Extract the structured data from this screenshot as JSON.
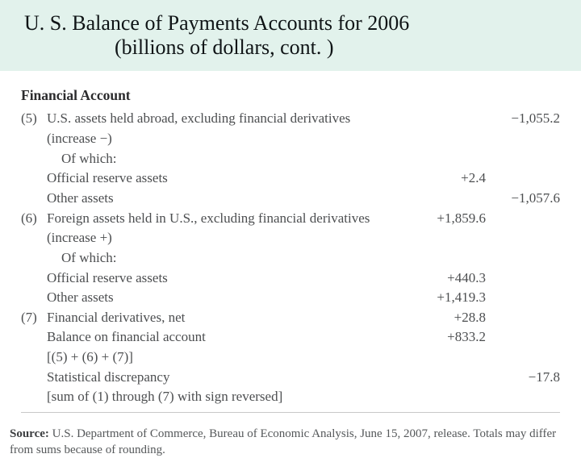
{
  "title": {
    "line1": "U. S. Balance of Payments Accounts for 2006",
    "line2": "(billions of dollars, cont. )"
  },
  "section_heading": "Financial Account",
  "rows": [
    {
      "num": "(5)",
      "label": "U.S. assets held abroad, excluding financial derivatives",
      "col1": "",
      "col2": "−1,055.2",
      "indent": 0
    },
    {
      "num": "",
      "label": "(increase −)",
      "col1": "",
      "col2": "",
      "indent": 0
    },
    {
      "num": "",
      "label": "Of which:",
      "col1": "",
      "col2": "",
      "indent": 1
    },
    {
      "num": "",
      "label": "Official reserve assets",
      "col1": "+2.4",
      "col2": "",
      "indent": 0
    },
    {
      "num": "",
      "label": "Other assets",
      "col1": "",
      "col2": "−1,057.6",
      "indent": 0
    },
    {
      "num": "(6)",
      "label": "Foreign assets held in U.S., excluding financial derivatives",
      "col1": "+1,859.6",
      "col2": "",
      "indent": 0
    },
    {
      "num": "",
      "label": "(increase +)",
      "col1": "",
      "col2": "",
      "indent": 0
    },
    {
      "num": "",
      "label": "Of which:",
      "col1": "",
      "col2": "",
      "indent": 1
    },
    {
      "num": "",
      "label": "Official reserve assets",
      "col1": "+440.3",
      "col2": "",
      "indent": 0
    },
    {
      "num": "",
      "label": "Other assets",
      "col1": "+1,419.3",
      "col2": "",
      "indent": 0
    },
    {
      "num": "(7)",
      "label": "Financial derivatives, net",
      "col1": "+28.8",
      "col2": "",
      "indent": 0
    },
    {
      "num": "",
      "label": "Balance on financial account",
      "col1": "+833.2",
      "col2": "",
      "indent": 0
    },
    {
      "num": "",
      "label": "[(5) + (6) + (7)]",
      "col1": "",
      "col2": "",
      "indent": 0
    },
    {
      "num": "",
      "label": "Statistical discrepancy",
      "col1": "",
      "col2": "−17.8",
      "indent": 0
    },
    {
      "num": "",
      "label": "[sum of (1) through (7) with sign reversed]",
      "col1": "",
      "col2": "",
      "indent": 0
    }
  ],
  "source_label": "Source:",
  "source_text": " U.S. Department of Commerce, Bureau of Economic Analysis, June 15, 2007, release. Totals may differ from sums because of rounding.",
  "colors": {
    "title_bg": "#e2f2ec",
    "text": "#45484a",
    "heading": "#2b2b2d",
    "rule": "#c9c9c9",
    "page_bg": "#ffffff"
  },
  "typography": {
    "title_fontsize_pt": 20,
    "body_fontsize_pt": 13,
    "source_fontsize_pt": 11,
    "font_family": "serif"
  }
}
